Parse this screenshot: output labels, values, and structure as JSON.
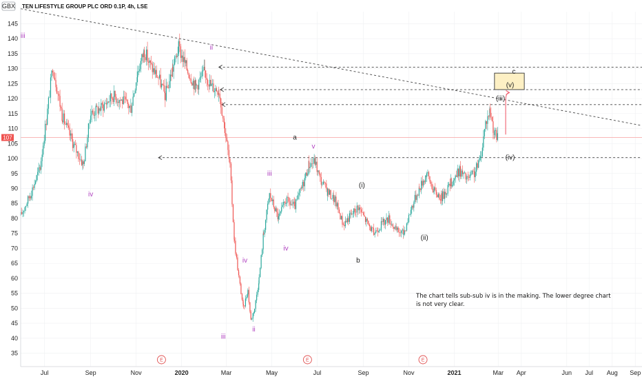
{
  "header": {
    "currency": "GBX",
    "title": "TEN LIFESTYLE GROUP PLC ORD 0.1P, 4h, LSE"
  },
  "price_marker": {
    "value": "107"
  },
  "colors": {
    "up": "#26a69a",
    "down": "#ef5350",
    "purple": "#b040c0",
    "box_fill": "#fdf0c4",
    "box_stroke": "#333333",
    "price_line": "#f7a1a1",
    "arrow": "#f06070"
  },
  "note_lines": [
    "The chart tells sub-sub iv is in the making. The lower degree chart",
    "is not very clear."
  ],
  "earnings_badges": [
    {
      "label": "E",
      "x": "2019-12-05"
    },
    {
      "label": "E",
      "x": "2020-06-18"
    },
    {
      "label": "E",
      "x": "2020-11-20"
    }
  ],
  "chart_data": {
    "type": "candlestick",
    "title": "TEN LIFESTYLE GROUP PLC ORD 0.1P, 4h, LSE",
    "x_axis": {
      "type": "date",
      "range": [
        "2019-05-30",
        "2021-09-10"
      ],
      "ticks": [
        {
          "label": "Jul",
          "x": "2019-07-01"
        },
        {
          "label": "Sep",
          "x": "2019-09-01"
        },
        {
          "label": "Nov",
          "x": "2019-11-01"
        },
        {
          "label": "2020",
          "x": "2020-01-01",
          "bold": true
        },
        {
          "label": "Mar",
          "x": "2020-03-01"
        },
        {
          "label": "May",
          "x": "2020-05-01"
        },
        {
          "label": "Jul",
          "x": "2020-07-01"
        },
        {
          "label": "Sep",
          "x": "2020-09-01"
        },
        {
          "label": "Nov",
          "x": "2020-11-01"
        },
        {
          "label": "2021",
          "x": "2021-01-01",
          "bold": true
        },
        {
          "label": "Mar",
          "x": "2021-03-01"
        },
        {
          "label": "Apr",
          "x": "2021-04-01"
        },
        {
          "label": "Jun",
          "x": "2021-06-01"
        },
        {
          "label": "Jul",
          "x": "2021-07-01"
        },
        {
          "label": "Aug",
          "x": "2021-08-01"
        },
        {
          "label": "Sep",
          "x": "2021-09-01"
        }
      ]
    },
    "y_axis": {
      "range": [
        31,
        149
      ],
      "ticks": [
        145,
        140,
        135,
        130,
        125,
        120,
        115,
        110,
        105,
        100,
        95,
        90,
        85,
        80,
        75,
        70,
        65,
        60,
        55,
        50,
        45,
        40,
        35
      ],
      "position": "left"
    },
    "last_price": 107,
    "price_path": [
      [
        "2019-05-30",
        81
      ],
      [
        "2019-06-12",
        88
      ],
      [
        "2019-06-25",
        97
      ],
      [
        "2019-07-05",
        116
      ],
      [
        "2019-07-12",
        131
      ],
      [
        "2019-07-25",
        114
      ],
      [
        "2019-08-10",
        104
      ],
      [
        "2019-08-22",
        98
      ],
      [
        "2019-09-01",
        115
      ],
      [
        "2019-09-15",
        117
      ],
      [
        "2019-10-01",
        121
      ],
      [
        "2019-10-15",
        119
      ],
      [
        "2019-10-25",
        117
      ],
      [
        "2019-11-03",
        129
      ],
      [
        "2019-11-12",
        136
      ],
      [
        "2019-11-20",
        131
      ],
      [
        "2019-12-01",
        127
      ],
      [
        "2019-12-10",
        121
      ],
      [
        "2019-12-20",
        130
      ],
      [
        "2019-12-28",
        137
      ],
      [
        "2020-01-08",
        130
      ],
      [
        "2020-01-20",
        124
      ],
      [
        "2020-02-01",
        129
      ],
      [
        "2020-02-10",
        124
      ],
      [
        "2020-02-20",
        123
      ],
      [
        "2020-02-28",
        110
      ],
      [
        "2020-03-06",
        97
      ],
      [
        "2020-03-12",
        72
      ],
      [
        "2020-03-18",
        60
      ],
      [
        "2020-03-24",
        50
      ],
      [
        "2020-03-30",
        56
      ],
      [
        "2020-04-03",
        46
      ],
      [
        "2020-04-08",
        50
      ],
      [
        "2020-04-14",
        60
      ],
      [
        "2020-04-20",
        75
      ],
      [
        "2020-04-28",
        88
      ],
      [
        "2020-05-10",
        80
      ],
      [
        "2020-05-20",
        86
      ],
      [
        "2020-06-01",
        84
      ],
      [
        "2020-06-10",
        90
      ],
      [
        "2020-06-20",
        98
      ],
      [
        "2020-06-28",
        99
      ],
      [
        "2020-07-05",
        93
      ],
      [
        "2020-07-15",
        89
      ],
      [
        "2020-07-25",
        86
      ],
      [
        "2020-08-05",
        78
      ],
      [
        "2020-08-15",
        81
      ],
      [
        "2020-08-25",
        84
      ],
      [
        "2020-09-05",
        79
      ],
      [
        "2020-09-15",
        75
      ],
      [
        "2020-09-25",
        78
      ],
      [
        "2020-10-05",
        80
      ],
      [
        "2020-10-15",
        76
      ],
      [
        "2020-10-25",
        75
      ],
      [
        "2020-11-05",
        84
      ],
      [
        "2020-11-15",
        90
      ],
      [
        "2020-11-25",
        95
      ],
      [
        "2020-12-05",
        89
      ],
      [
        "2020-12-15",
        87
      ],
      [
        "2020-12-28",
        92
      ],
      [
        "2021-01-08",
        96
      ],
      [
        "2021-01-18",
        93
      ],
      [
        "2021-01-28",
        95
      ],
      [
        "2021-02-05",
        100
      ],
      [
        "2021-02-12",
        112
      ],
      [
        "2021-02-18",
        116
      ],
      [
        "2021-02-24",
        108
      ],
      [
        "2021-03-01",
        107
      ]
    ],
    "projection_arrow": {
      "from": [
        "2021-03-11",
        108
      ],
      "to": [
        "2021-03-16",
        122
      ]
    },
    "horizontal_levels": [
      {
        "y": 130.5,
        "x_start": "2020-02-20",
        "arrow": true
      },
      {
        "y": 123,
        "x_start": "2020-02-22",
        "arrow": true
      },
      {
        "y": 118,
        "x_start": "2020-02-24",
        "arrow": true
      },
      {
        "y": 100.3,
        "x_start": "2019-12-01",
        "arrow": true
      }
    ],
    "trendline": {
      "from": [
        "2019-05-30",
        150
      ],
      "to": [
        "2021-09-10",
        111
      ]
    },
    "target_box": {
      "x0": "2021-02-24",
      "x1": "2021-04-05",
      "y0": 123,
      "y1": 128.5
    },
    "annotations": [
      {
        "text": "iii",
        "x": "2019-06-02",
        "y": 141,
        "color": "purple"
      },
      {
        "text": "iv",
        "x": "2019-09-01",
        "y": 88,
        "color": "purple"
      },
      {
        "text": "ii",
        "x": "2020-02-10",
        "y": 137,
        "color": "purple"
      },
      {
        "text": "iii",
        "x": "2020-04-28",
        "y": 95,
        "color": "purple"
      },
      {
        "text": "iv",
        "x": "2020-05-20",
        "y": 70,
        "color": "purple"
      },
      {
        "text": "v",
        "x": "2020-06-26",
        "y": 104,
        "color": "purple"
      },
      {
        "text": "iv",
        "x": "2020-03-26",
        "y": 66,
        "color": "purple"
      },
      {
        "text": "iii",
        "x": "2020-02-26",
        "y": 40.5,
        "color": "purple"
      },
      {
        "text": "ii",
        "x": "2020-04-07",
        "y": 43,
        "color": "purple"
      },
      {
        "text": "a",
        "x": "2020-06-01",
        "y": 107,
        "color": "dark"
      },
      {
        "text": "b",
        "x": "2020-08-25",
        "y": 66,
        "color": "dark"
      },
      {
        "text": "(i)",
        "x": "2020-08-30",
        "y": 91,
        "color": "dark"
      },
      {
        "text": "(ii)",
        "x": "2020-11-22",
        "y": 73.5,
        "color": "dark"
      },
      {
        "text": "(iii)",
        "x": "2021-03-04",
        "y": 120,
        "color": "dark"
      },
      {
        "text": "(iv)",
        "x": "2021-03-17",
        "y": 100.3,
        "color": "dark"
      },
      {
        "text": "(v)",
        "x": "2021-03-17",
        "y": 124.5,
        "color": "dark"
      },
      {
        "text": "c",
        "x": "2021-03-22",
        "y": 129,
        "color": "dark"
      }
    ]
  }
}
